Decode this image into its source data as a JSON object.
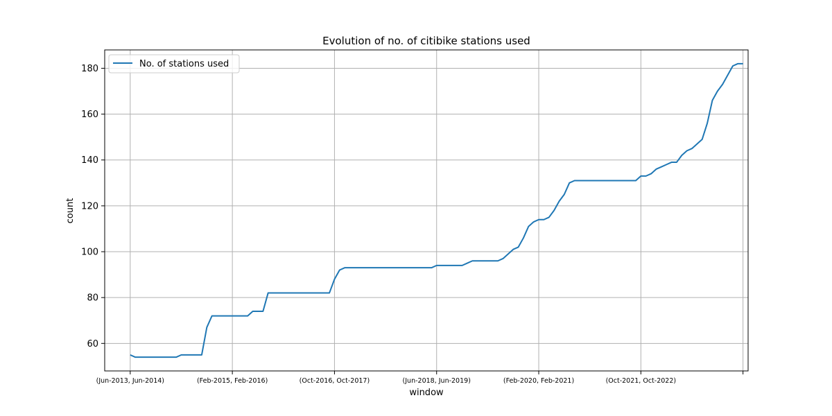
{
  "chart_data": {
    "type": "line",
    "title": "Evolution of no. of citibike stations used",
    "xlabel": "window",
    "ylabel": "count",
    "grid": true,
    "legend_position": "top-left",
    "xlim": [
      -5,
      121
    ],
    "ylim": [
      48,
      188
    ],
    "x_ticks": [
      {
        "value": 0,
        "label": "(Jun-2013, Jun-2014)"
      },
      {
        "value": 20,
        "label": "(Feb-2015, Feb-2016)"
      },
      {
        "value": 40,
        "label": "(Oct-2016, Oct-2017)"
      },
      {
        "value": 60,
        "label": "(Jun-2018, Jun-2019)"
      },
      {
        "value": 80,
        "label": "(Feb-2020, Feb-2021)"
      },
      {
        "value": 100,
        "label": "(Oct-2021, Oct-2022)"
      },
      {
        "value": 120,
        "label": ""
      }
    ],
    "y_ticks": [
      60,
      80,
      100,
      120,
      140,
      160,
      180
    ],
    "series": [
      {
        "name": "No. of stations used",
        "color": "#1f77b4",
        "values": [
          55,
          54,
          54,
          54,
          54,
          54,
          54,
          54,
          54,
          54,
          55,
          55,
          55,
          55,
          55,
          67,
          72,
          72,
          72,
          72,
          72,
          72,
          72,
          72,
          74,
          74,
          74,
          82,
          82,
          82,
          82,
          82,
          82,
          82,
          82,
          82,
          82,
          82,
          82,
          82,
          88,
          92,
          93,
          93,
          93,
          93,
          93,
          93,
          93,
          93,
          93,
          93,
          93,
          93,
          93,
          93,
          93,
          93,
          93,
          93,
          94,
          94,
          94,
          94,
          94,
          94,
          95,
          96,
          96,
          96,
          96,
          96,
          96,
          97,
          99,
          101,
          102,
          106,
          111,
          113,
          114,
          114,
          115,
          118,
          122,
          125,
          130,
          131,
          131,
          131,
          131,
          131,
          131,
          131,
          131,
          131,
          131,
          131,
          131,
          131,
          133,
          133,
          134,
          136,
          137,
          138,
          139,
          139,
          142,
          144,
          145,
          147,
          149,
          156,
          166,
          170,
          173,
          177,
          181,
          182,
          182
        ]
      }
    ]
  }
}
